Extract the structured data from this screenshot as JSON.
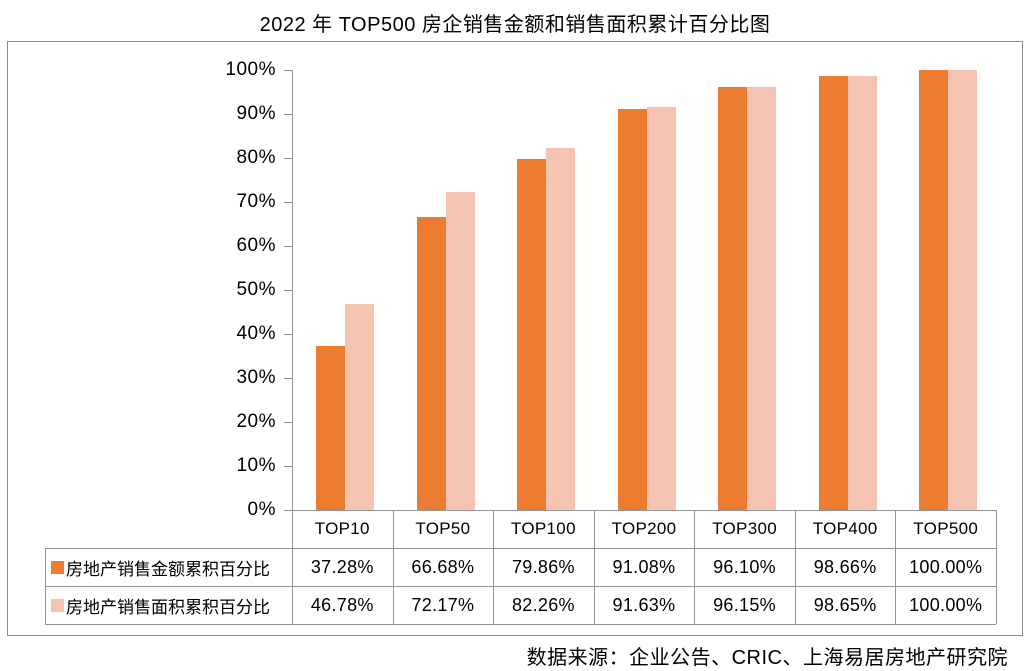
{
  "title": "2022 年 TOP500 房企销售金额和销售面积累计百分比图",
  "source_note": "数据来源：企业公告、CRIC、上海易居房地产研究院",
  "colors": {
    "sales_amount": "#EC7C30",
    "sales_area": "#F4C3B2",
    "table_line": "#949494",
    "frame_border": "#8C8C8C",
    "text": "#000000"
  },
  "chart_data": {
    "type": "bar",
    "title": "2022 年 TOP500 房企销售金额和销售面积累计百分比图",
    "categories": [
      "TOP10",
      "TOP50",
      "TOP100",
      "TOP200",
      "TOP300",
      "TOP400",
      "TOP500"
    ],
    "series": [
      {
        "name": "房地产销售金额累积百分比",
        "color": "#EC7C30",
        "values": [
          37.28,
          66.68,
          79.86,
          91.08,
          96.1,
          98.66,
          100.0
        ],
        "value_labels": [
          "37.28%",
          "66.68%",
          "79.86%",
          "91.08%",
          "96.10%",
          "98.66%",
          "100.00%"
        ]
      },
      {
        "name": "房地产销售面积累积百分比",
        "color": "#F4C3B2",
        "values": [
          46.78,
          72.17,
          82.26,
          91.63,
          96.15,
          98.65,
          100.0
        ],
        "value_labels": [
          "46.78%",
          "72.17%",
          "82.26%",
          "91.63%",
          "96.15%",
          "98.65%",
          "100.00%"
        ]
      }
    ],
    "y_axis": {
      "min": 0,
      "max": 100,
      "step": 10,
      "tick_labels": [
        "0%",
        "10%",
        "20%",
        "30%",
        "40%",
        "50%",
        "60%",
        "70%",
        "80%",
        "90%",
        "100%"
      ]
    },
    "legend_position": "data-table-left",
    "grid": false
  }
}
